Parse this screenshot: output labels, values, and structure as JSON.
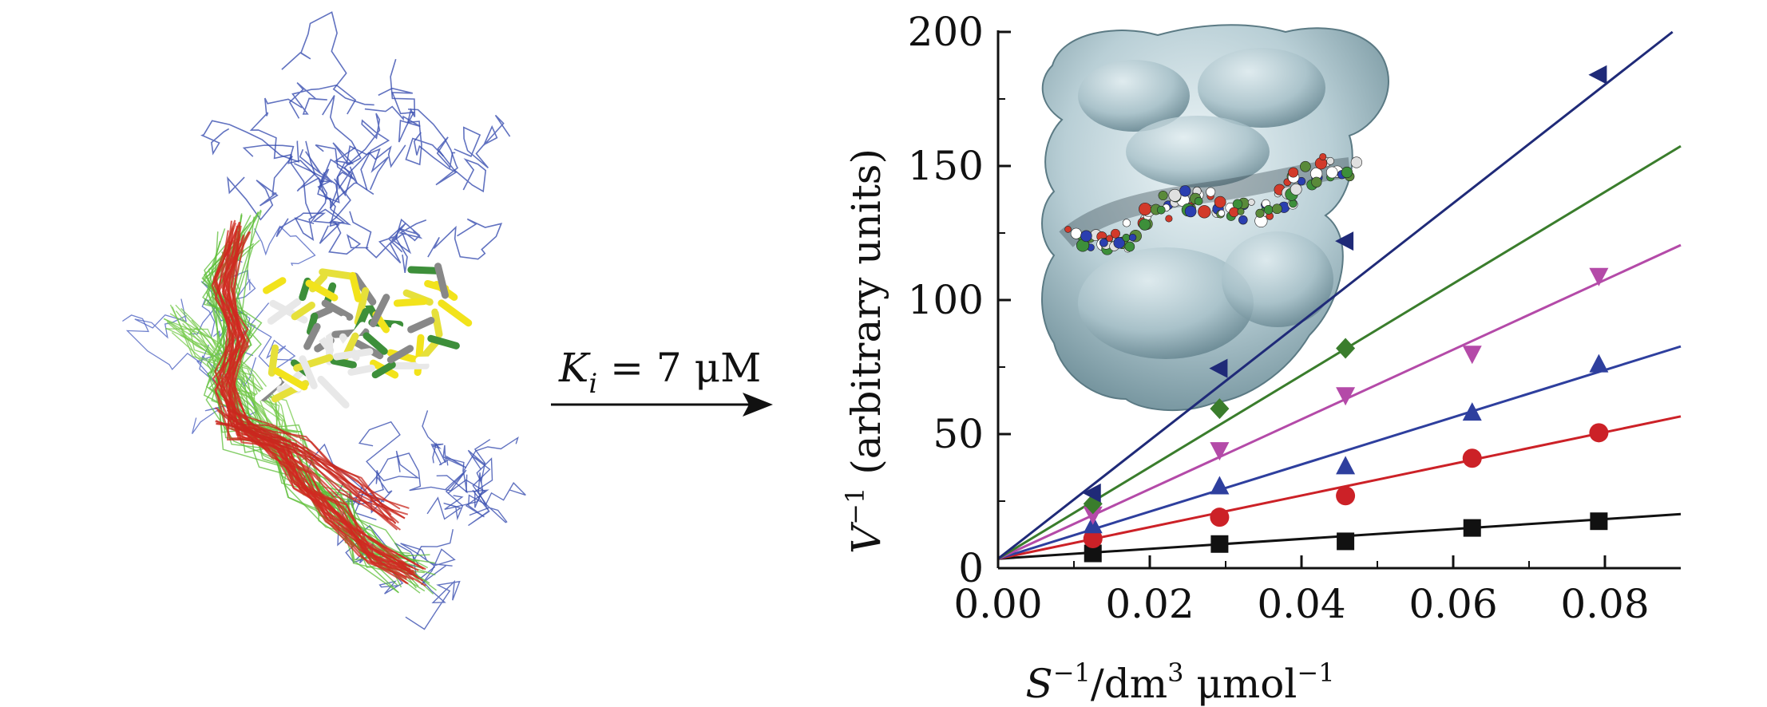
{
  "figure": {
    "arrow_label": {
      "symbol": "K",
      "subscript": "i",
      "rest": " = 7 μM"
    }
  },
  "colors": {
    "black": "#111111",
    "red": "#cc2127",
    "blue": "#2e3f9e",
    "magenta": "#b44aa8",
    "green": "#3a7d2c",
    "navy": "#1f2a78"
  },
  "chart_data": {
    "type": "scatter",
    "title": "",
    "xlabel": {
      "base": "S",
      "exp": "−1",
      "mid": "/dm",
      "exp2": "3",
      "tail": " μmol",
      "exp3": "−1"
    },
    "ylabel": {
      "base": "V",
      "exp": "−1",
      "tail": " (arbitrary units)"
    },
    "xlim": [
      0.0,
      0.09
    ],
    "ylim": [
      0,
      200
    ],
    "x_ticks": [
      "0.00",
      "0.02",
      "0.04",
      "0.06",
      "0.08"
    ],
    "x_tick_values": [
      0.0,
      0.02,
      0.04,
      0.06,
      0.08
    ],
    "y_ticks": [
      "0",
      "50",
      "100",
      "150",
      "200"
    ],
    "y_tick_values": [
      0,
      50,
      100,
      150,
      200
    ],
    "grid": false,
    "legend": "none",
    "x": [
      0.0125,
      0.0292,
      0.0458,
      0.0625,
      0.0792
    ],
    "series": [
      {
        "marker": "square",
        "color": "#111111",
        "values": [
          5.5,
          9,
          10,
          15,
          17.5
        ],
        "fit": {
          "intercept": 3.5,
          "slope": 185
        }
      },
      {
        "marker": "circle",
        "color": "#cc2127",
        "values": [
          11,
          19,
          27,
          41,
          50.5
        ],
        "fit": {
          "intercept": 3.5,
          "slope": 590
        }
      },
      {
        "marker": "triangle-up",
        "color": "#2e3f9e",
        "values": [
          16,
          30.5,
          38,
          58,
          76
        ],
        "fit": {
          "intercept": 3.5,
          "slope": 880
        }
      },
      {
        "marker": "triangle-down",
        "color": "#b44aa8",
        "values": [
          20,
          44,
          64.5,
          80,
          109
        ],
        "fit": {
          "intercept": 3.5,
          "slope": 1300
        }
      },
      {
        "marker": "diamond",
        "color": "#3a7d2c",
        "values": [
          24,
          59.5,
          82
        ],
        "x_idx": [
          0,
          1,
          2
        ],
        "fit": {
          "intercept": 3.5,
          "slope": 1710
        }
      },
      {
        "marker": "triangle-left",
        "color": "#1f2a78",
        "values": [
          28,
          74.5,
          122,
          184
        ],
        "x_idx": [
          0,
          1,
          2,
          4
        ],
        "fit": {
          "intercept": 3.5,
          "slope": 2210
        }
      }
    ]
  }
}
